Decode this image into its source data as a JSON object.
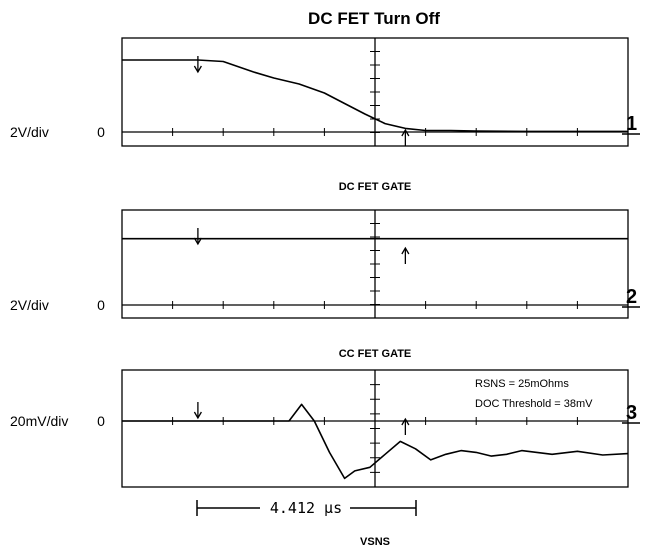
{
  "chart_data": {
    "type": "line",
    "title": "DC FET Turn Off",
    "xlabel": "VSNS",
    "time_measurement": "4.412 µs",
    "panels": [
      {
        "id": "1",
        "title": "",
        "channel": "1",
        "scale_label": "2V/div",
        "zero_label": "0",
        "series": [
          {
            "x": [
              0.0,
              1.5,
              2.0,
              2.6,
              3.0,
              3.5,
              4.0,
              4.4,
              4.8,
              5.2,
              5.6,
              6.0,
              6.5,
              7.0,
              8.0,
              10.0
            ],
            "y": [
              2.4,
              2.4,
              2.35,
              2.0,
              1.8,
              1.6,
              1.3,
              0.95,
              0.6,
              0.28,
              0.12,
              0.05,
              0.05,
              0.03,
              0.02,
              0.02
            ]
          }
        ]
      },
      {
        "id": "2",
        "title": "DC FET GATE",
        "channel": "2",
        "scale_label": "2V/div",
        "zero_label": "0",
        "series": [
          {
            "x": [
              0.0,
              10.0
            ],
            "y": [
              2.55,
              2.55
            ]
          }
        ]
      },
      {
        "id": "3",
        "title": "CC FET GATE",
        "channel": "3",
        "scale_label": "20mV/div",
        "zero_label": "0",
        "annotations": [
          "RSNS = 25mOhms",
          "DOC Threshold = 38mV"
        ],
        "series": [
          {
            "x": [
              0.0,
              3.3,
              3.55,
              3.8,
              4.1,
              4.4,
              4.6,
              4.9,
              5.2,
              5.5,
              5.8,
              6.1,
              6.4,
              6.7,
              7.0,
              7.3,
              7.6,
              7.9,
              8.2,
              8.5,
              9.0,
              9.5,
              10.0
            ],
            "y": [
              0.0,
              0.0,
              0.45,
              0.0,
              -0.85,
              -1.55,
              -1.35,
              -1.25,
              -0.9,
              -0.55,
              -0.75,
              -1.05,
              -0.9,
              -0.8,
              -0.85,
              -0.95,
              -0.9,
              -0.8,
              -0.85,
              -0.9,
              -0.82,
              -0.92,
              -0.88
            ]
          }
        ]
      }
    ],
    "markers": {
      "start_div": 1.5,
      "end_div": 5.6
    },
    "xlim": [
      0,
      10
    ],
    "grid": "center crosshair with ticks"
  }
}
